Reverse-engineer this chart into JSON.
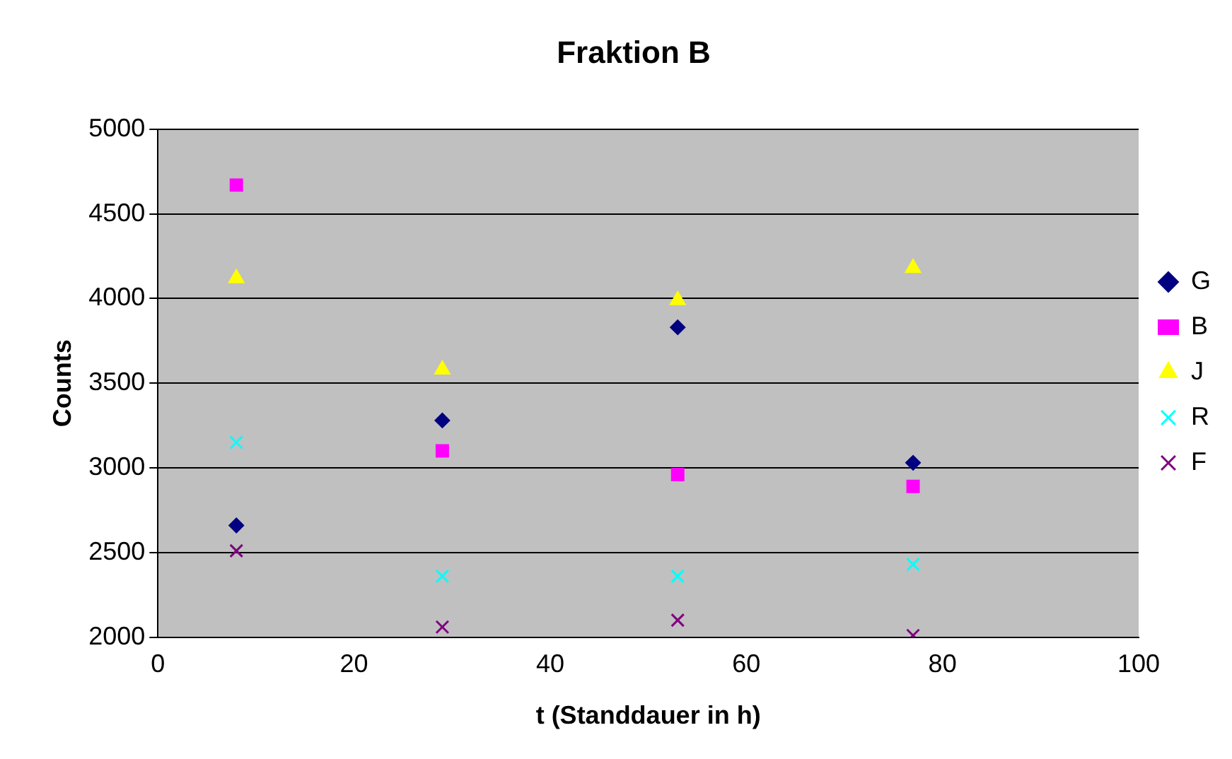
{
  "chart_data": {
    "type": "scatter",
    "title": "Fraktion B",
    "xlabel": "t (Standdauer in h)",
    "ylabel": "Counts",
    "x": [
      8,
      29,
      53,
      77
    ],
    "series": [
      {
        "name": "G",
        "color": "#000080",
        "marker": "diamond",
        "values": [
          2660,
          3280,
          3830,
          3030
        ]
      },
      {
        "name": "B",
        "color": "#ff00ff",
        "marker": "square",
        "values": [
          4670,
          3100,
          2960,
          2890
        ]
      },
      {
        "name": "J",
        "color": "#ffff00",
        "marker": "triangle",
        "values": [
          4120,
          3580,
          3990,
          4180
        ]
      },
      {
        "name": "R",
        "color": "#00ffff",
        "marker": "cross",
        "values": [
          3150,
          2360,
          2360,
          2430
        ]
      },
      {
        "name": "F",
        "color": "#800080",
        "marker": "cross",
        "values": [
          2510,
          2060,
          2100,
          2010
        ]
      }
    ],
    "xlim": [
      0,
      100
    ],
    "xticks": [
      0,
      20,
      40,
      60,
      80,
      100
    ],
    "ylim": [
      2000,
      5000
    ],
    "yticks": [
      2000,
      2500,
      3000,
      3500,
      4000,
      4500,
      5000
    ],
    "grid": "y",
    "legend": "right"
  }
}
